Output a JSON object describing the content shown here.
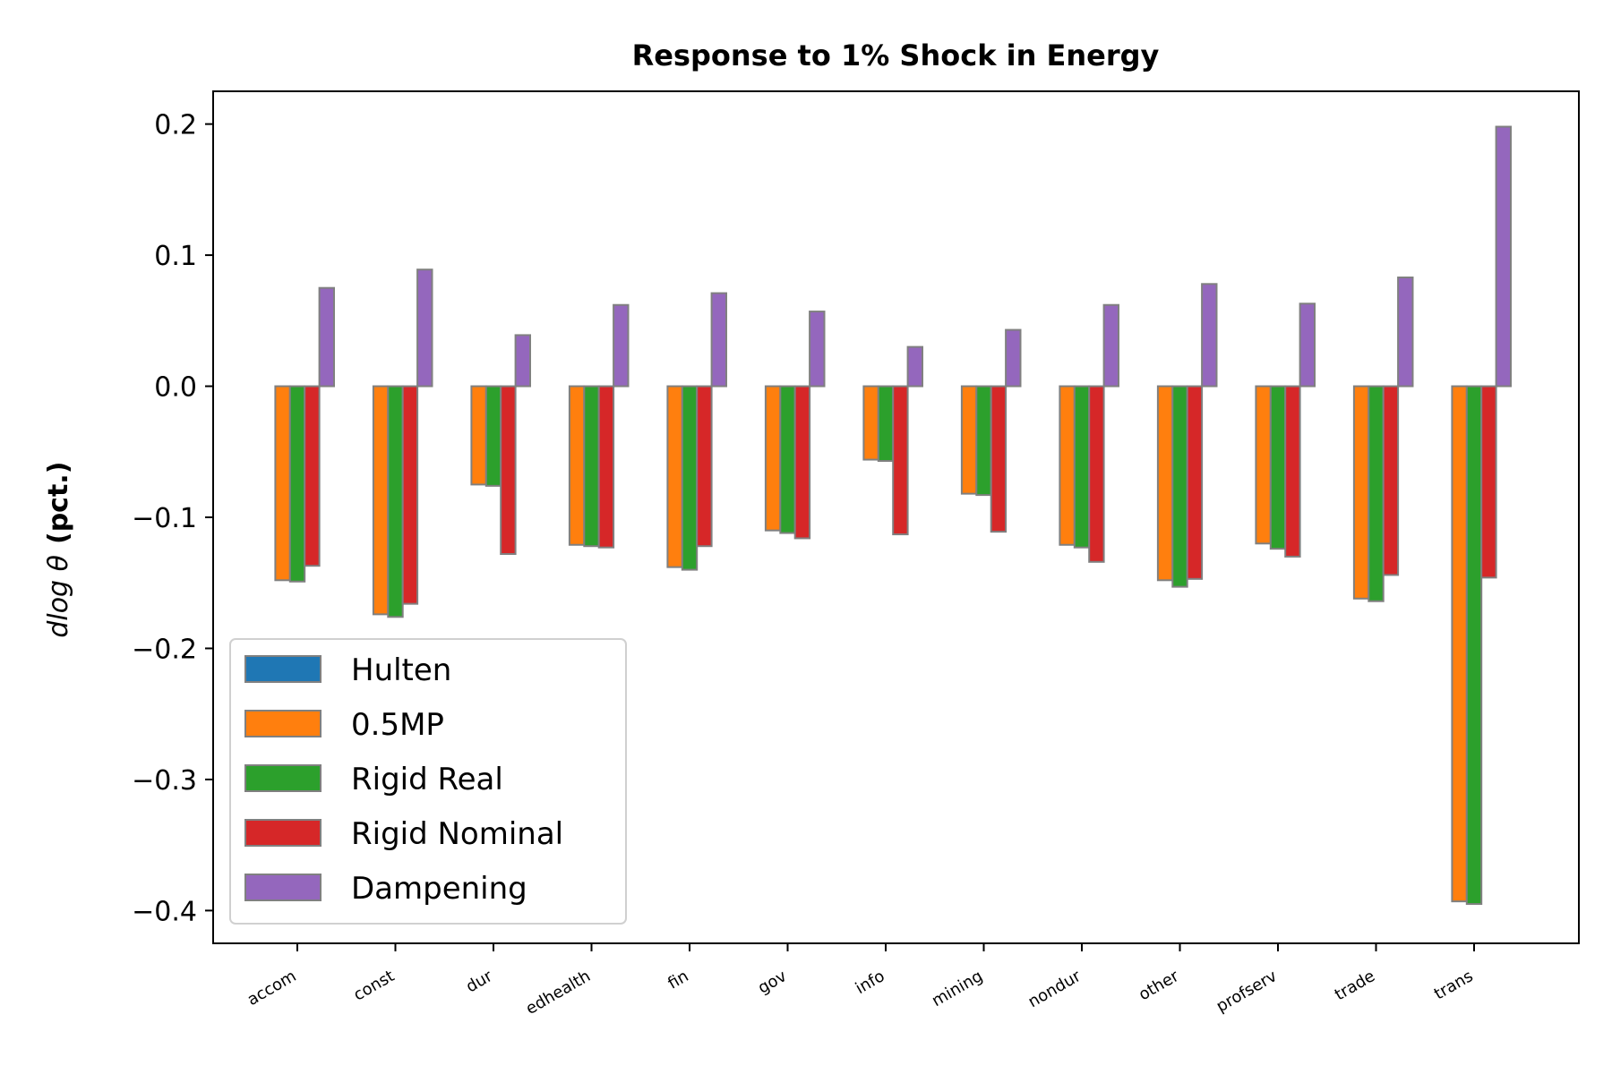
{
  "chart_data": {
    "type": "bar",
    "title": "Response to 1% Shock in Energy",
    "ylabel_math": "dlog θ",
    "ylabel_text": "(pct.)",
    "xlabel": "",
    "ylim": [
      -0.425,
      0.225
    ],
    "yticks": [
      0.2,
      0.1,
      0.0,
      -0.1,
      -0.2,
      -0.3,
      -0.4
    ],
    "ytick_labels": [
      "0.2",
      "0.1",
      "0.0",
      "−0.1",
      "−0.2",
      "−0.3",
      "−0.4"
    ],
    "categories": [
      "accom",
      "const",
      "dur",
      "edhealth",
      "fin",
      "gov",
      "info",
      "mining",
      "nondur",
      "other",
      "profserv",
      "trade",
      "trans"
    ],
    "series": [
      {
        "name": "Hulten",
        "color": "#1f77b4",
        "values": [
          0,
          0,
          0,
          0,
          0,
          0,
          0,
          0,
          0,
          0,
          0,
          0,
          0
        ]
      },
      {
        "name": "0.5MP",
        "color": "#ff7f0e",
        "values": [
          -0.148,
          -0.174,
          -0.075,
          -0.121,
          -0.138,
          -0.11,
          -0.056,
          -0.082,
          -0.121,
          -0.148,
          -0.12,
          -0.162,
          -0.393
        ]
      },
      {
        "name": "Rigid Real",
        "color": "#2ca02c",
        "values": [
          -0.149,
          -0.176,
          -0.076,
          -0.122,
          -0.14,
          -0.112,
          -0.057,
          -0.083,
          -0.123,
          -0.153,
          -0.124,
          -0.164,
          -0.395
        ]
      },
      {
        "name": "Rigid Nominal",
        "color": "#d62728",
        "values": [
          -0.137,
          -0.166,
          -0.128,
          -0.123,
          -0.122,
          -0.116,
          -0.113,
          -0.111,
          -0.134,
          -0.147,
          -0.13,
          -0.144,
          -0.146
        ]
      },
      {
        "name": "Dampening",
        "color": "#9467bd",
        "values": [
          0.075,
          0.089,
          0.039,
          0.062,
          0.071,
          0.057,
          0.03,
          0.043,
          0.062,
          0.078,
          0.063,
          0.083,
          0.198
        ]
      }
    ],
    "legend_position": "lower-left",
    "bar_edge_color": "#808080",
    "grid": false
  }
}
